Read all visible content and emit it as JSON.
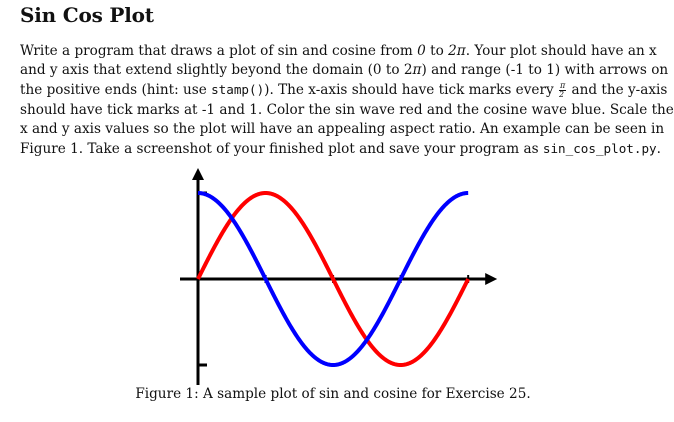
{
  "document": {
    "heading": "Sin Cos Plot",
    "lines": [
      {
        "parts": [
          {
            "t": "text",
            "v": "Write a program that draws a plot of sin and cosine from "
          },
          {
            "t": "math",
            "v": "0"
          },
          {
            "t": "text",
            "v": " to "
          },
          {
            "t": "math",
            "v": "2π"
          },
          {
            "t": "text",
            "v": ". Your plot should have an x"
          }
        ]
      },
      {
        "parts": [
          {
            "t": "text",
            "v": "and y axis that extend slightly beyond the domain (0 to 2"
          },
          {
            "t": "math",
            "v": "π"
          },
          {
            "t": "text",
            "v": ") and range (-1 to 1) with arrows on"
          }
        ]
      },
      {
        "parts": [
          {
            "t": "text",
            "v": "the positive ends (hint: use "
          },
          {
            "t": "code",
            "v": "stamp()"
          },
          {
            "t": "text",
            "v": "). The x-axis should have tick marks every "
          },
          {
            "t": "frac",
            "num": "π",
            "den": "2"
          },
          {
            "t": "text",
            "v": " and the y-axis"
          }
        ]
      },
      {
        "parts": [
          {
            "t": "text",
            "v": "should have tick marks at -1 and 1. Color the sin wave red and the cosine wave blue. Scale the"
          }
        ]
      },
      {
        "parts": [
          {
            "t": "text",
            "v": "x and y axis values so the plot will have an appealing aspect ratio. An example can be seen in"
          }
        ]
      },
      {
        "parts": [
          {
            "t": "text",
            "v": "Figure 1. Take a screenshot of your finished plot and save your program as "
          },
          {
            "t": "code",
            "v": "sin_cos_plot.py"
          },
          {
            "t": "text",
            "v": "."
          }
        ]
      }
    ],
    "caption": "Figure 1: A sample plot of sin and cosine for Exercise 25."
  },
  "chart_data": {
    "type": "line",
    "x_range": [
      0,
      6.2832
    ],
    "y_range": [
      -1,
      1
    ],
    "x_ticks": [
      1.5708,
      3.1416,
      4.7124,
      6.2832
    ],
    "y_ticks": [
      -1,
      1
    ],
    "axis_arrows": "positive-ends",
    "grid": false,
    "series": [
      {
        "function": "sin",
        "color": "#ff0000"
      },
      {
        "function": "cos",
        "color": "#0000ff"
      }
    ]
  }
}
